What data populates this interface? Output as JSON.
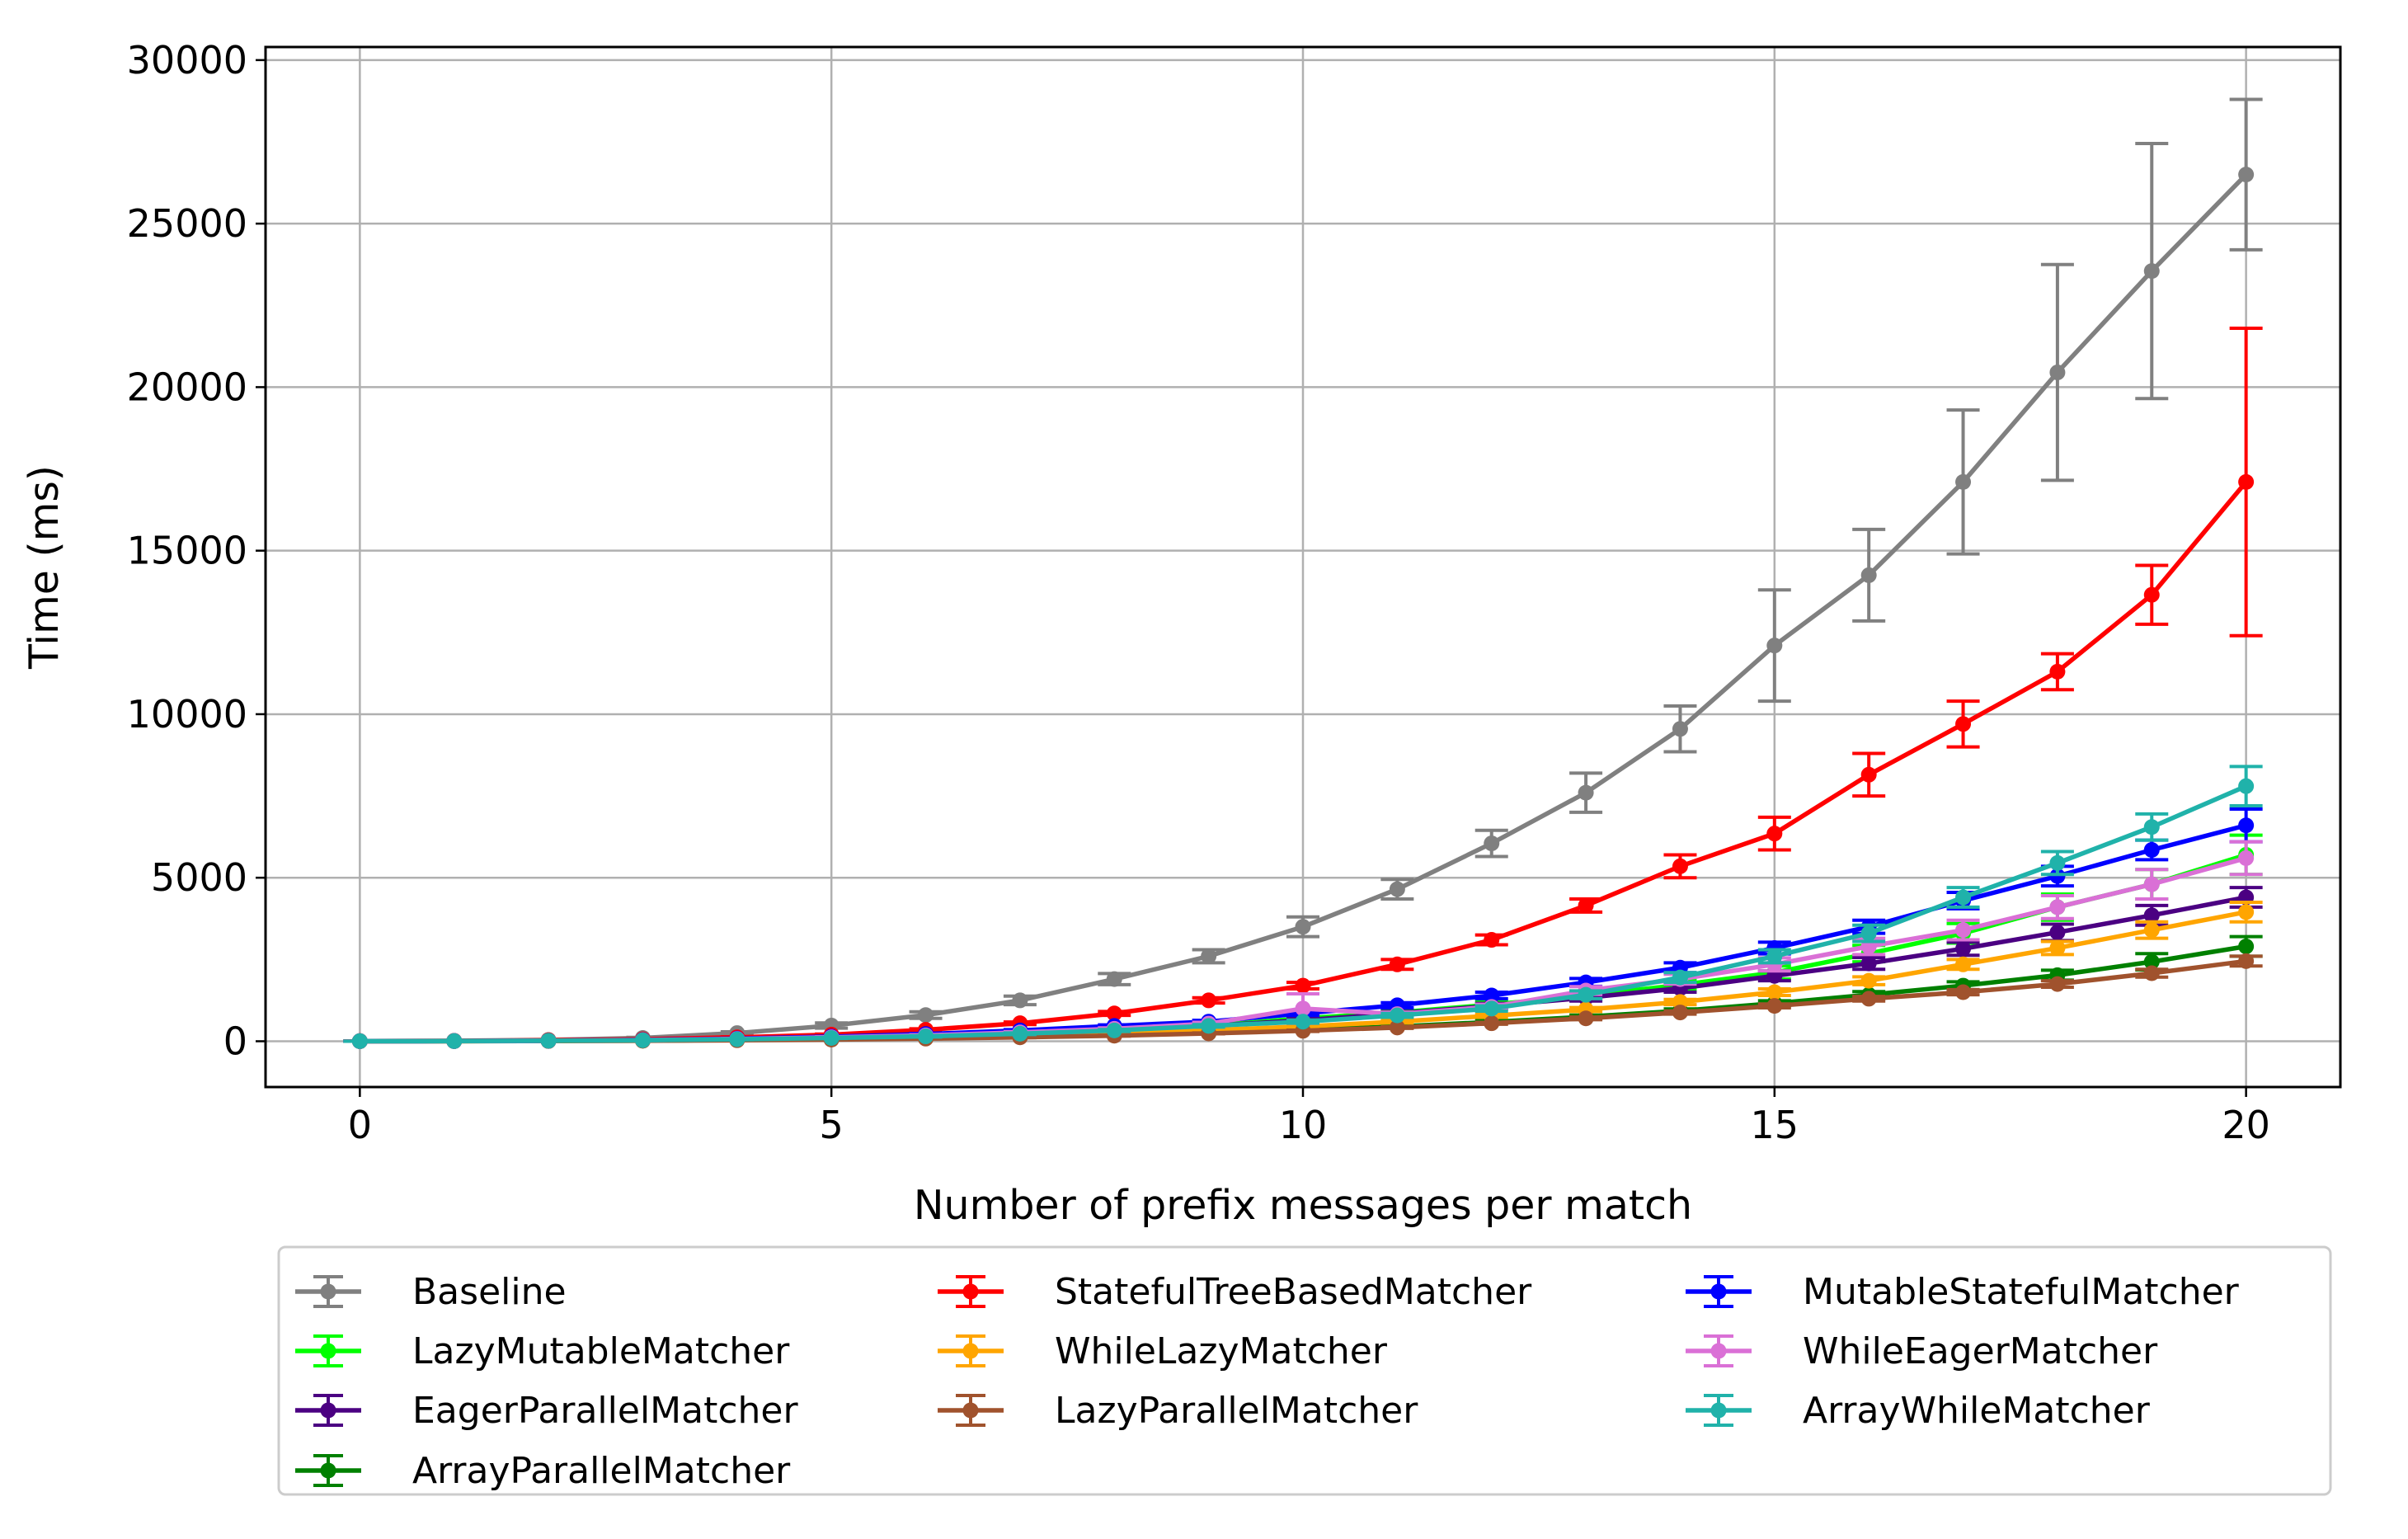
{
  "chart_data": {
    "type": "line",
    "title": "",
    "xlabel": "Number of prefix messages per match",
    "ylabel": "Time (ms)",
    "xlim": [
      -1,
      21
    ],
    "ylim": [
      -1400,
      30400
    ],
    "xticks": [
      0,
      5,
      10,
      15,
      20
    ],
    "yticks": [
      0,
      5000,
      10000,
      15000,
      20000,
      25000,
      30000
    ],
    "grid": true,
    "error_bars": true,
    "legend_position": "below",
    "legend_columns": 3,
    "x": [
      0,
      1,
      2,
      3,
      4,
      5,
      6,
      7,
      8,
      9,
      10,
      11,
      12,
      13,
      14,
      15,
      16,
      17,
      18,
      19,
      20
    ],
    "series": [
      {
        "name": "Baseline",
        "color": "#808080",
        "values": [
          5,
          15,
          40,
          100,
          250,
          480,
          800,
          1250,
          1900,
          2600,
          3500,
          4650,
          6050,
          7600,
          9550,
          12100,
          14250,
          17100,
          20450,
          23550,
          26500
        ],
        "errors": [
          2,
          5,
          10,
          20,
          40,
          80,
          100,
          130,
          170,
          200,
          300,
          300,
          400,
          600,
          700,
          1700,
          1400,
          2200,
          3300,
          3900,
          2300
        ]
      },
      {
        "name": "LazyMutableMatcher",
        "color": "#00ff00",
        "values": [
          2,
          5,
          15,
          30,
          60,
          100,
          150,
          220,
          320,
          470,
          700,
          880,
          1120,
          1400,
          1720,
          2100,
          2680,
          3300,
          4100,
          4800,
          5700
        ],
        "errors": [
          1,
          2,
          4,
          8,
          12,
          15,
          20,
          25,
          30,
          40,
          80,
          80,
          100,
          120,
          150,
          200,
          250,
          300,
          400,
          450,
          600
        ]
      },
      {
        "name": "EagerParallelMatcher",
        "color": "#4b0082",
        "values": [
          2,
          5,
          15,
          30,
          60,
          100,
          150,
          240,
          340,
          470,
          640,
          850,
          1080,
          1330,
          1620,
          2000,
          2380,
          2830,
          3330,
          3850,
          4400
        ],
        "errors": [
          1,
          2,
          4,
          8,
          12,
          15,
          20,
          25,
          30,
          40,
          60,
          60,
          80,
          100,
          120,
          150,
          180,
          200,
          250,
          300,
          300
        ]
      },
      {
        "name": "ArrayParallelMatcher",
        "color": "#008000",
        "values": [
          1,
          3,
          8,
          18,
          40,
          60,
          100,
          140,
          200,
          260,
          350,
          450,
          590,
          750,
          930,
          1160,
          1420,
          1700,
          2020,
          2430,
          2900
        ],
        "errors": [
          1,
          1,
          2,
          4,
          6,
          8,
          10,
          12,
          15,
          20,
          30,
          30,
          40,
          50,
          60,
          80,
          100,
          120,
          150,
          250,
          300
        ]
      },
      {
        "name": "StatefulTreeBasedMatcher",
        "color": "#ff0000",
        "values": [
          5,
          10,
          30,
          60,
          120,
          200,
          350,
          550,
          850,
          1250,
          1700,
          2350,
          3100,
          4150,
          5350,
          6350,
          8150,
          9700,
          11300,
          13650,
          17100
        ],
        "errors": [
          2,
          3,
          6,
          10,
          15,
          20,
          30,
          40,
          60,
          80,
          100,
          150,
          150,
          200,
          350,
          500,
          650,
          700,
          550,
          900,
          4700
        ]
      },
      {
        "name": "WhileLazyMatcher",
        "color": "#ffa500",
        "values": [
          1,
          3,
          10,
          20,
          40,
          70,
          110,
          170,
          240,
          340,
          450,
          600,
          780,
          970,
          1200,
          1500,
          1850,
          2350,
          2850,
          3400,
          3950
        ],
        "errors": [
          1,
          1,
          2,
          4,
          6,
          8,
          10,
          15,
          20,
          25,
          30,
          40,
          50,
          60,
          80,
          100,
          120,
          150,
          200,
          250,
          300
        ]
      },
      {
        "name": "LazyParallelMatcher",
        "color": "#a0522d",
        "values": [
          1,
          3,
          8,
          15,
          30,
          50,
          80,
          120,
          170,
          240,
          320,
          420,
          550,
          700,
          880,
          1080,
          1300,
          1500,
          1750,
          2080,
          2450
        ],
        "errors": [
          1,
          1,
          2,
          3,
          4,
          6,
          8,
          10,
          12,
          15,
          20,
          25,
          30,
          40,
          50,
          60,
          70,
          80,
          100,
          120,
          150
        ]
      },
      {
        "name": "MutableStatefulMatcher",
        "color": "#0000ff",
        "values": [
          2,
          5,
          15,
          40,
          80,
          140,
          220,
          330,
          470,
          600,
          850,
          1100,
          1400,
          1800,
          2250,
          2850,
          3500,
          4300,
          5050,
          5850,
          6600
        ],
        "errors": [
          1,
          2,
          4,
          8,
          12,
          15,
          20,
          25,
          30,
          40,
          60,
          80,
          100,
          120,
          150,
          180,
          200,
          250,
          300,
          300,
          500
        ]
      },
      {
        "name": "WhileEagerMatcher",
        "color": "#da70d6",
        "values": [
          2,
          5,
          15,
          35,
          70,
          120,
          180,
          270,
          380,
          540,
          1000,
          830,
          1050,
          1550,
          1900,
          2350,
          2900,
          3400,
          4100,
          4800,
          5600
        ],
        "errors": [
          1,
          2,
          4,
          8,
          12,
          15,
          20,
          25,
          30,
          40,
          450,
          60,
          80,
          120,
          150,
          200,
          250,
          300,
          350,
          450,
          500
        ]
      },
      {
        "name": "ArrayWhileMatcher",
        "color": "#20b2aa",
        "values": [
          2,
          5,
          15,
          30,
          60,
          100,
          150,
          230,
          330,
          470,
          600,
          790,
          1000,
          1420,
          1950,
          2600,
          3300,
          4400,
          5450,
          6550,
          7800
        ],
        "errors": [
          1,
          2,
          4,
          8,
          12,
          15,
          20,
          25,
          30,
          40,
          50,
          60,
          80,
          120,
          150,
          200,
          250,
          300,
          350,
          400,
          600
        ]
      }
    ],
    "legend_order": [
      "Baseline",
      "StatefulTreeBasedMatcher",
      "MutableStatefulMatcher",
      "LazyMutableMatcher",
      "WhileLazyMatcher",
      "WhileEagerMatcher",
      "EagerParallelMatcher",
      "LazyParallelMatcher",
      "ArrayWhileMatcher",
      "ArrayParallelMatcher"
    ]
  }
}
